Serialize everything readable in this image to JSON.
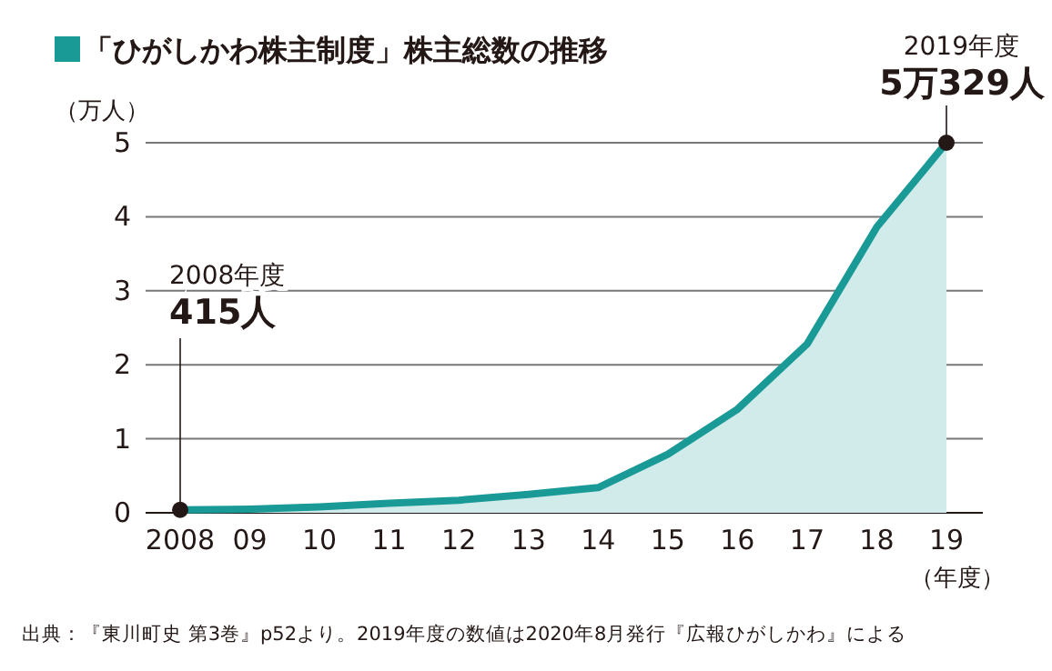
{
  "chart_data": {
    "type": "area",
    "title": "「ひがしかわ株主制度」株主総数の推移",
    "ylabel": "（万人）",
    "xlabel": "（年度）",
    "categories": [
      "2008",
      "09",
      "10",
      "11",
      "12",
      "13",
      "14",
      "15",
      "16",
      "17",
      "18",
      "19"
    ],
    "series": [
      {
        "color": "#1a9a96",
        "values": [
          0.04,
          0.05,
          0.08,
          0.13,
          0.17,
          0.25,
          0.34,
          0.79,
          1.4,
          2.28,
          3.86,
          5
        ]
      }
    ],
    "ylim": [
      0,
      5
    ],
    "yticks": [
      0,
      1,
      2,
      3,
      4,
      5
    ],
    "grid": "y",
    "annotations": [
      "2008年度",
      {
        "text": "415人",
        "x": "2008",
        "y": 0.04
      },
      "2019年度",
      {
        "text": "5万329人",
        "x": "19",
        "y": 5
      },
      "出典：『東川町史 第3巻』p52より。2019年度の数値は2020年8月発行『広報ひがしかわ』による"
    ]
  }
}
